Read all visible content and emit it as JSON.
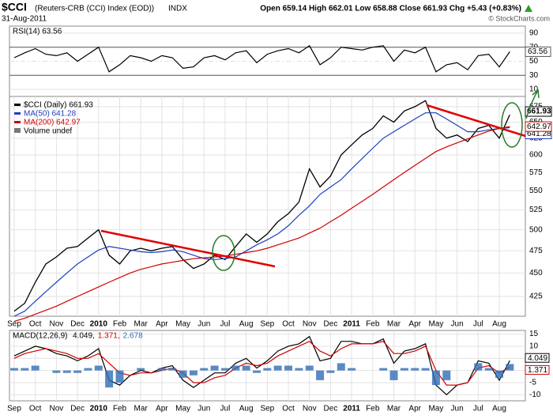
{
  "header": {
    "symbol": "$CCI",
    "name": "(Reuters-CRB (CCI) Index (EOD))",
    "exchange": "INDX",
    "date": "31-Aug-2011",
    "quote": "Open 659.14 High 662.01 Low 658.88 Close 661.93 Chg +5.43 (+0.83%)",
    "credit": "© StockCharts.com"
  },
  "chart_data": [
    {
      "type": "line",
      "title": "RSI(14) 63.56",
      "last_label": "63.56",
      "series": [
        {
          "name": "RSI(14)",
          "color": "#000000",
          "values": [
            55,
            62,
            68,
            60,
            58,
            62,
            50,
            60,
            70,
            35,
            45,
            58,
            55,
            50,
            58,
            55,
            40,
            42,
            55,
            58,
            52,
            62,
            65,
            48,
            60,
            65,
            68,
            62,
            72,
            45,
            55,
            70,
            68,
            66,
            70,
            72,
            50,
            66,
            62,
            70,
            35,
            45,
            48,
            38,
            58,
            60,
            42,
            63.56
          ]
        }
      ],
      "ylim": [
        0,
        100
      ],
      "yticks": [
        10,
        30,
        50,
        70,
        90
      ]
    },
    {
      "type": "line",
      "log": true,
      "grid": true,
      "categories": [
        "Sep",
        null,
        "Oct",
        null,
        "Nov",
        null,
        "Dec",
        null,
        "2010",
        null,
        "Feb",
        null,
        "Mar",
        null,
        "Apr",
        null,
        "May",
        null,
        "Jun",
        null,
        "Jul",
        null,
        "Aug",
        null,
        "Sep",
        null,
        "Oct",
        null,
        "Nov",
        null,
        "Dec",
        null,
        "2011",
        null,
        "Feb",
        null,
        "Mar",
        null,
        "Apr",
        null,
        "May",
        null,
        "Jun",
        null,
        "Jul",
        null,
        "Aug",
        null
      ],
      "series": [
        {
          "name": "$CCI (Daily) 661.93",
          "color": "#000000",
          "values": [
            410,
            418,
            440,
            460,
            468,
            478,
            480,
            490,
            500,
            470,
            460,
            475,
            478,
            475,
            478,
            480,
            465,
            455,
            460,
            470,
            465,
            480,
            495,
            485,
            495,
            510,
            520,
            535,
            580,
            555,
            570,
            600,
            615,
            630,
            640,
            660,
            650,
            668,
            675,
            685,
            640,
            625,
            630,
            620,
            640,
            645,
            625,
            661.93
          ]
        },
        {
          "name": "MA(50) 641.28",
          "color": "#1f3fbf",
          "values": [
            405,
            410,
            420,
            430,
            440,
            450,
            460,
            468,
            476,
            480,
            478,
            476,
            474,
            473,
            474,
            476,
            474,
            470,
            466,
            465,
            466,
            468,
            475,
            482,
            488,
            495,
            505,
            518,
            530,
            545,
            555,
            565,
            580,
            595,
            610,
            625,
            635,
            645,
            655,
            665,
            665,
            655,
            645,
            635,
            635,
            638,
            640,
            641.28
          ]
        },
        {
          "name": "MA(200) 642.97",
          "color": "#d00000",
          "values": [
            400,
            403,
            407,
            411,
            415,
            420,
            425,
            430,
            435,
            440,
            445,
            450,
            454,
            457,
            460,
            462,
            464,
            466,
            467,
            468,
            469,
            471,
            473,
            475,
            478,
            482,
            486,
            490,
            496,
            502,
            510,
            518,
            527,
            536,
            545,
            555,
            565,
            575,
            585,
            595,
            605,
            612,
            618,
            624,
            630,
            636,
            640,
            642.97
          ]
        }
      ],
      "legend_extra": "Volume undef",
      "last_labels": [
        "661.93",
        "641.28",
        "642.97"
      ],
      "ylim": [
        405,
        692
      ],
      "yticks": [
        425,
        450,
        475,
        500,
        525,
        550,
        575,
        600,
        625,
        650,
        675
      ]
    },
    {
      "type": "line",
      "title": "MACD(12,26,9)",
      "title_values": [
        "4.049,",
        "1.371,",
        "2.678"
      ],
      "last_labels": [
        "4.049",
        "1.371"
      ],
      "categories": [
        "Sep",
        null,
        "Oct",
        null,
        "Nov",
        null,
        "Dec",
        null,
        "2010",
        null,
        "Feb",
        null,
        "Mar",
        null,
        "Apr",
        null,
        "May",
        null,
        "Jun",
        null,
        "Jul",
        null,
        "Aug",
        null,
        "Sep",
        null,
        "Oct",
        null,
        "Nov",
        null,
        "Dec",
        null,
        "2011",
        null,
        "Feb",
        null,
        "Mar",
        null,
        "Apr",
        null,
        "May",
        null,
        "Jun",
        null,
        "Jul",
        null,
        "Aug",
        null
      ],
      "series": [
        {
          "name": "MACD",
          "color": "#000000",
          "values": [
            6,
            8,
            10,
            9,
            7,
            6,
            4,
            6,
            9,
            -4,
            -6,
            -2,
            0,
            -1,
            1,
            2,
            -4,
            -7,
            -4,
            -1,
            -1,
            3,
            5,
            1,
            4,
            8,
            10,
            11,
            14,
            4,
            5,
            12,
            12,
            11,
            11,
            13,
            3,
            8,
            9,
            11,
            -6,
            -10,
            -6,
            -5,
            4,
            3,
            -4,
            4.049
          ]
        },
        {
          "name": "Signal",
          "color": "#d00000",
          "values": [
            5,
            7,
            8,
            9,
            8,
            7,
            5,
            5,
            7,
            3,
            -1,
            -2,
            -1,
            -1,
            0,
            1,
            -1,
            -5,
            -5,
            -3,
            -2,
            1,
            3,
            2,
            3,
            6,
            8,
            10,
            12,
            8,
            6,
            9,
            11,
            11,
            11,
            12,
            7,
            7,
            8,
            10,
            0,
            -6,
            -6,
            -5,
            1,
            2,
            -1,
            1.371
          ]
        },
        {
          "name": "Histogram",
          "color": "#2f6db5",
          "style": "bar",
          "values": [
            1,
            1,
            2,
            0,
            -1,
            -1,
            -1,
            1,
            2,
            -7,
            -5,
            0,
            1,
            0,
            1,
            1,
            -3,
            -2,
            1,
            2,
            1,
            2,
            2,
            -1,
            1,
            2,
            2,
            1,
            2,
            -4,
            -1,
            3,
            1,
            0,
            0,
            1,
            -4,
            1,
            1,
            1,
            -6,
            -4,
            0,
            0,
            3,
            1,
            -3,
            2.678
          ]
        }
      ],
      "ylim": [
        -12.5,
        16.5
      ],
      "yticks": [
        -10,
        -5,
        0,
        5,
        10,
        15
      ]
    }
  ]
}
